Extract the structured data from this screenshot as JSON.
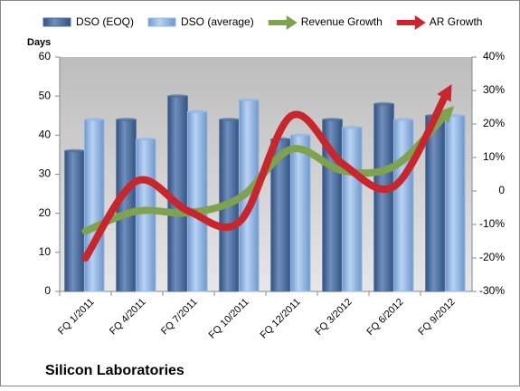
{
  "chart_data": {
    "type": "bar-line",
    "title": "Silicon Laboratories",
    "y_label": "Days",
    "categories": [
      "FQ 1/2011",
      "FQ 4/2011",
      "FQ 7/2011",
      "FQ 10/2011",
      "FQ 12/2011",
      "FQ 3/2012",
      "FQ 6/2012",
      "FQ 9/2012"
    ],
    "series": [
      {
        "name": "DSO (EOQ)",
        "type": "bar",
        "color": "#4f6f9f",
        "values": [
          36,
          44,
          50,
          44,
          39,
          44,
          48,
          45
        ]
      },
      {
        "name": "DSO (average)",
        "type": "bar",
        "color": "#93b8e4",
        "values": [
          44,
          39,
          46,
          49,
          40,
          42,
          44,
          45
        ]
      },
      {
        "name": "Revenue Growth",
        "type": "line",
        "axis": "y2",
        "color": "#7ea24e",
        "values": [
          -12,
          -6,
          -6.5,
          -2,
          12.5,
          6,
          7.5,
          23
        ]
      },
      {
        "name": "AR Growth",
        "type": "line",
        "axis": "y2",
        "color": "#c8262c",
        "values": [
          -20,
          3,
          -6,
          -9,
          22.5,
          8,
          1.5,
          29
        ]
      }
    ],
    "ylim": [
      0,
      60
    ],
    "yticks": [
      0,
      10,
      20,
      30,
      40,
      50,
      60
    ],
    "y2lim": [
      -30,
      40
    ],
    "y2ticks": [
      {
        "value": -30,
        "label": "-30%"
      },
      {
        "value": -20,
        "label": "-20%"
      },
      {
        "value": -10,
        "label": "-10%"
      },
      0,
      {
        "value": 10,
        "label": "10%"
      },
      {
        "value": 20,
        "label": "20%"
      },
      {
        "value": 30,
        "label": "30%"
      },
      {
        "value": 40,
        "label": "40%"
      }
    ],
    "legend": "top"
  }
}
